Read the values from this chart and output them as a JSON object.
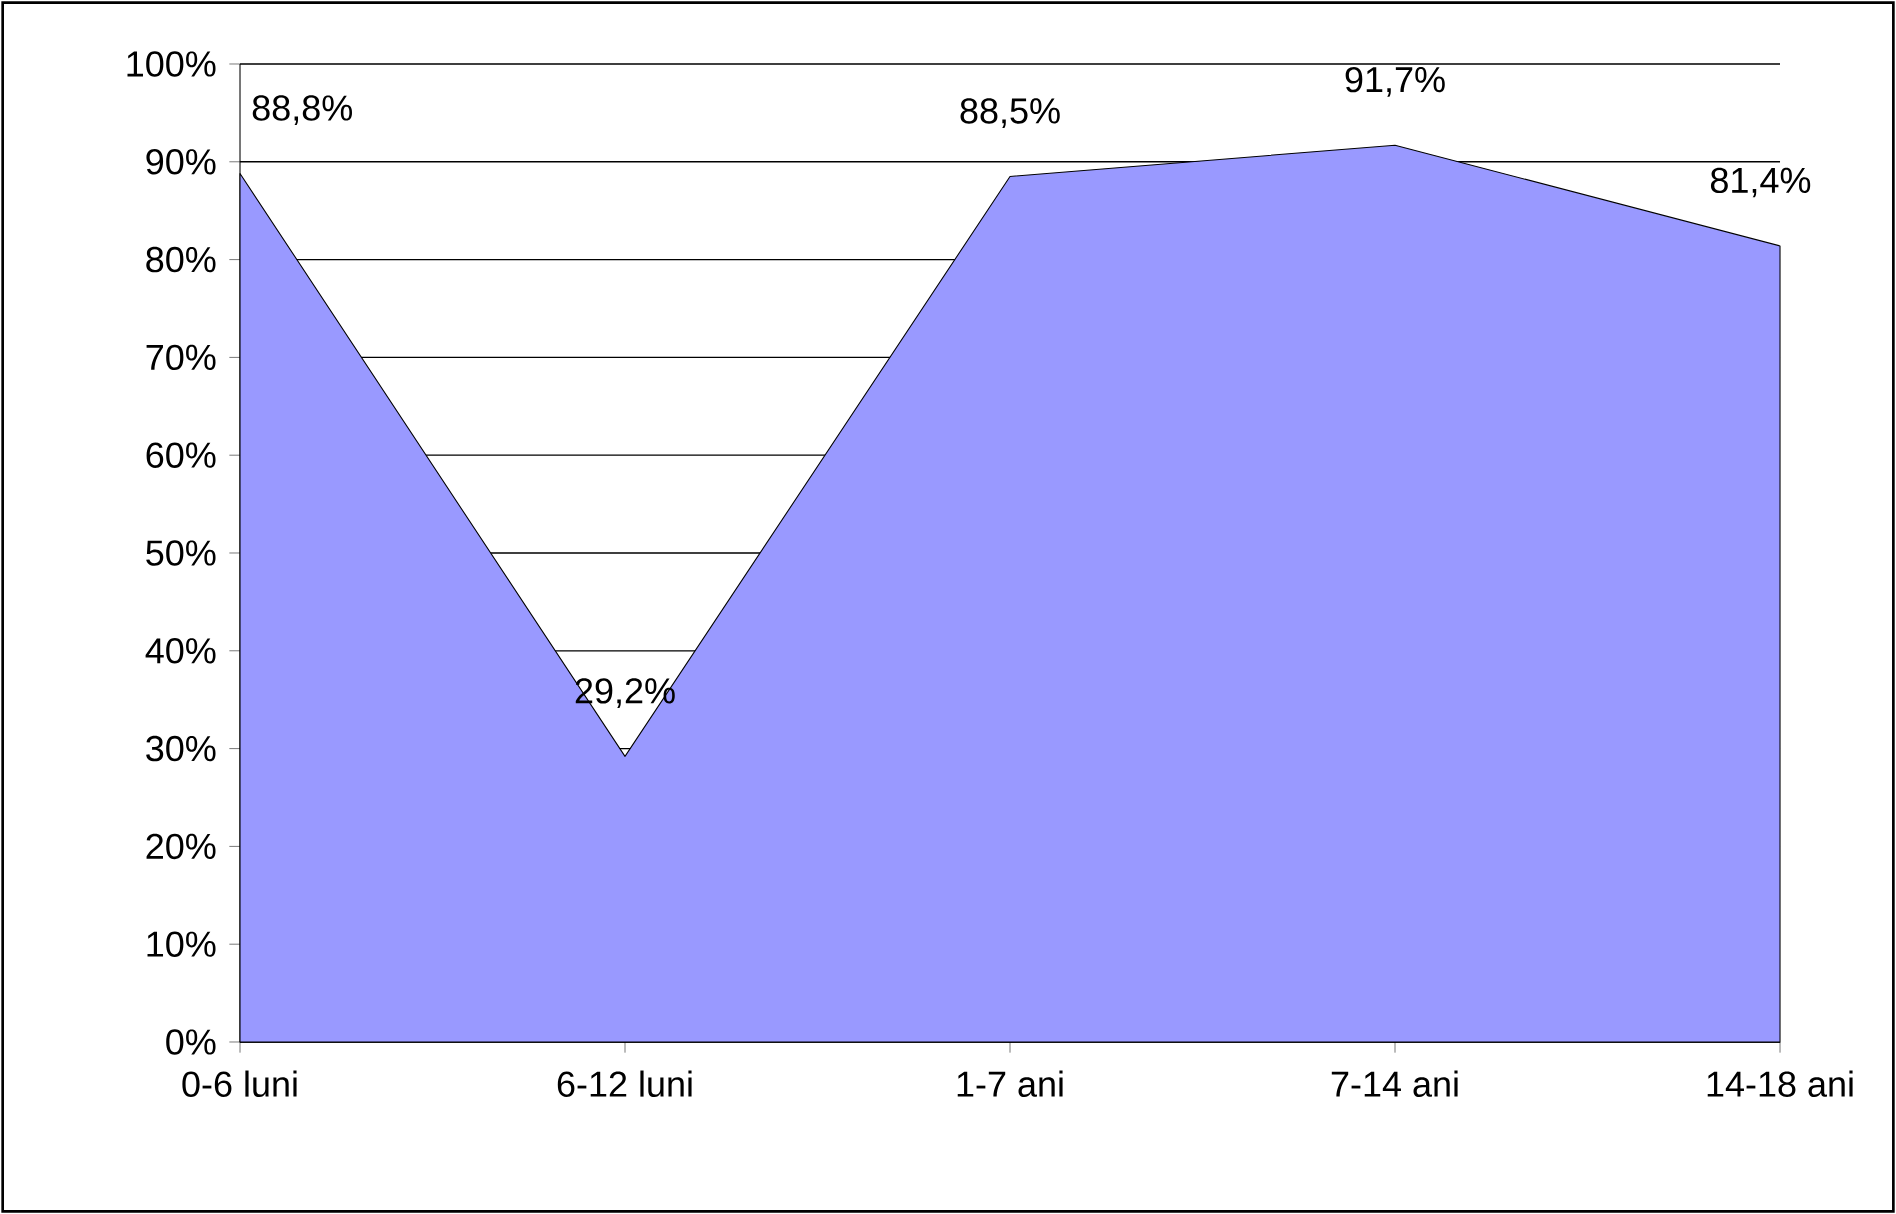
{
  "chart_data": {
    "type": "area",
    "categories": [
      "0-6 luni",
      "6-12 luni",
      "1-7 ani",
      "7-14 ani",
      "14-18 ani"
    ],
    "values": [
      88.8,
      29.2,
      88.5,
      91.7,
      81.4
    ],
    "value_labels": [
      "88,8%",
      "29,2%",
      "88,5%",
      "91,7%",
      "81,4%"
    ],
    "color": "#9999ff",
    "ylim": [
      0,
      100
    ],
    "yticks": [
      {
        "value": 0,
        "label": "0%"
      },
      {
        "value": 10,
        "label": "10%"
      },
      {
        "value": 20,
        "label": "20%"
      },
      {
        "value": 30,
        "label": "30%"
      },
      {
        "value": 40,
        "label": "40%"
      },
      {
        "value": 50,
        "label": "50%"
      },
      {
        "value": 60,
        "label": "60%"
      },
      {
        "value": 70,
        "label": "70%"
      },
      {
        "value": 80,
        "label": "80%"
      },
      {
        "value": 90,
        "label": "90%"
      },
      {
        "value": 100,
        "label": "100%"
      }
    ],
    "grid": "y"
  }
}
